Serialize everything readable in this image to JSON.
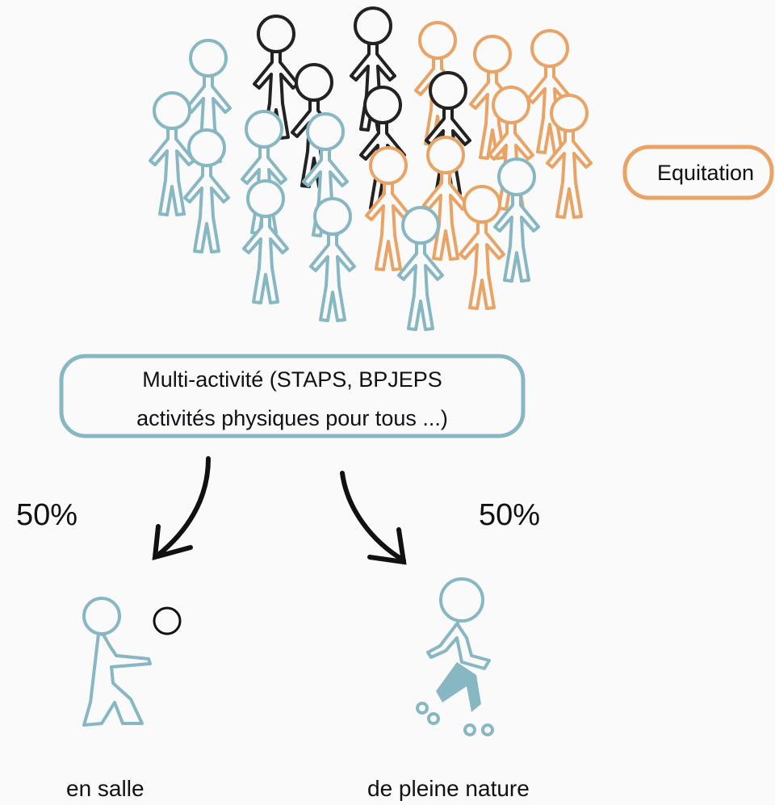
{
  "badge": {
    "label": "Equitation"
  },
  "box": {
    "lines": [
      "Multi-activité (STAPS, BPJEPS",
      "activités physiques pour tous ...)"
    ]
  },
  "branches": [
    {
      "share": "50%",
      "label": "en salle"
    },
    {
      "share": "50%",
      "label": "de pleine nature"
    }
  ]
}
